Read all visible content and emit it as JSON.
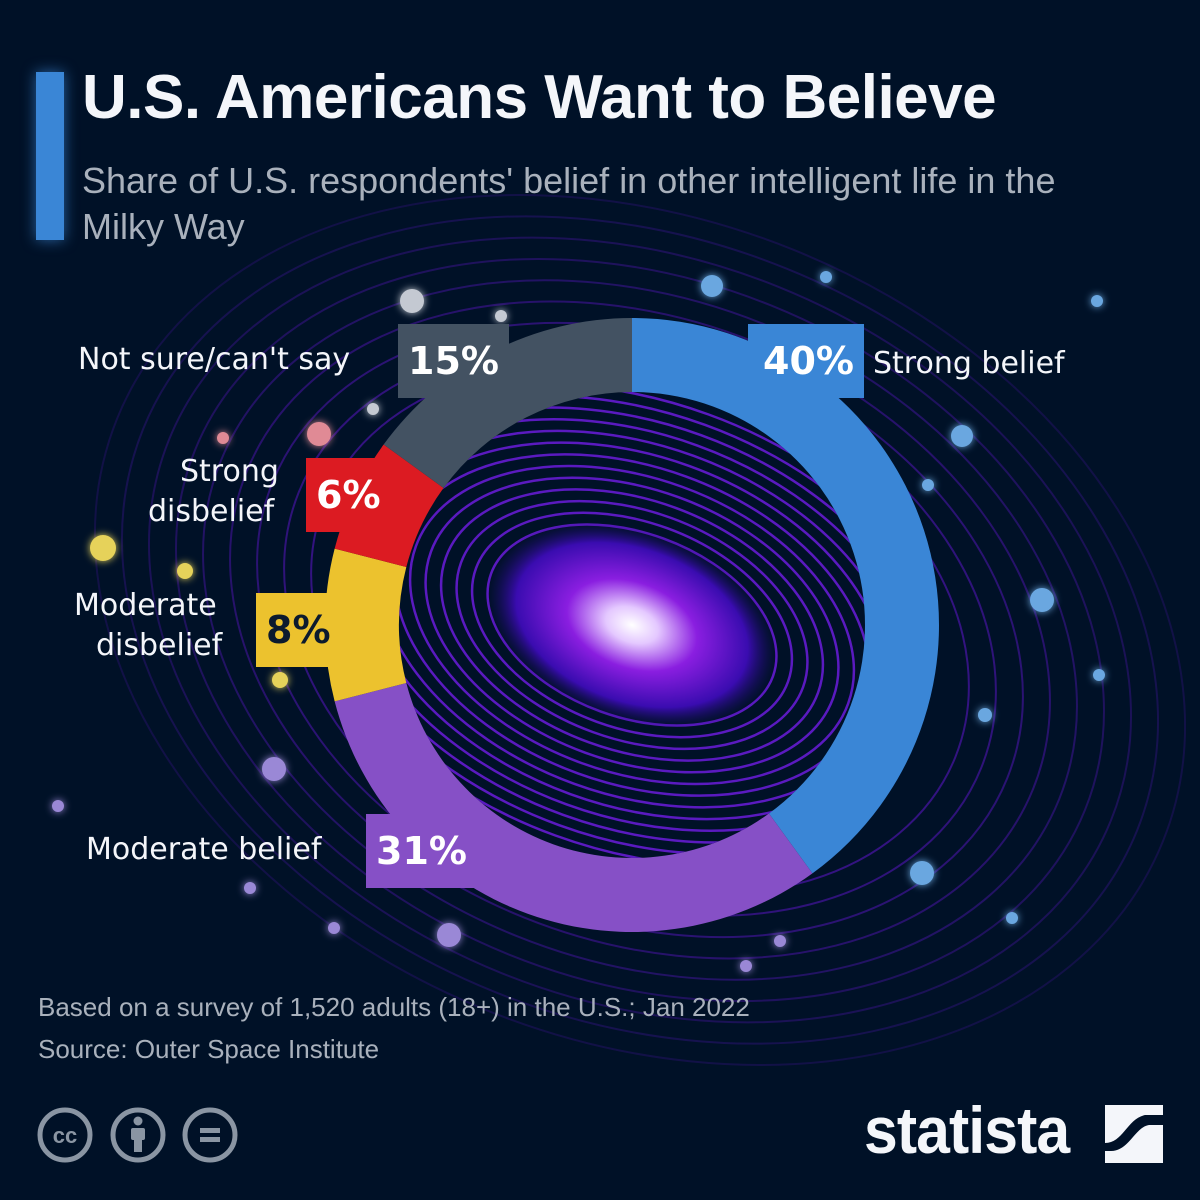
{
  "header": {
    "title": "U.S. Americans Want to Believe",
    "subtitle": "Share of U.S. respondents' belief in other intelligent life in the Milky Way"
  },
  "colors": {
    "background": "#001127",
    "accent": "#3a86d6",
    "strong_belief": "#3a86d6",
    "moderate_belief": "#8650c6",
    "moderate_disbelief": "#ecc22e",
    "strong_disbelief": "#dc1b22",
    "not_sure": "#435262"
  },
  "chart_data": {
    "type": "pie",
    "variant": "donut",
    "title": "U.S. Americans Want to Believe",
    "subtitle": "Share of U.S. respondents' belief in other intelligent life in the Milky Way",
    "direction": "clockwise-from-top",
    "unit": "%",
    "slices": [
      {
        "key": "strong_belief",
        "label": "Strong belief",
        "value": 40,
        "display": "40%",
        "color": "#3a86d6",
        "text_color": "#ffffff"
      },
      {
        "key": "moderate_belief",
        "label": "Moderate belief",
        "value": 31,
        "display": "31%",
        "color": "#8650c6",
        "text_color": "#ffffff"
      },
      {
        "key": "moderate_disbelief",
        "label": "Moderate disbelief",
        "value": 8,
        "display": "8%",
        "color": "#ecc22e",
        "text_color": "#0c1a2e"
      },
      {
        "key": "strong_disbelief",
        "label": "Strong disbelief",
        "value": 6,
        "display": "6%",
        "color": "#dc1b22",
        "text_color": "#ffffff"
      },
      {
        "key": "not_sure",
        "label": "Not sure/can't say",
        "value": 15,
        "display": "15%",
        "color": "#435262",
        "text_color": "#ffffff"
      }
    ]
  },
  "labels": {
    "strong_belief": "Strong belief",
    "moderate_belief": "Moderate belief",
    "moderate_disbelief_line1": "Moderate",
    "moderate_disbelief_line2": "disbelief",
    "strong_disbelief_line1": "Strong",
    "strong_disbelief_line2": "disbelief",
    "not_sure": "Not sure/can't say"
  },
  "footer": {
    "note": "Based on a survey of 1,520 adults (18+) in the U.S.; Jan 2022",
    "source": "Source: Outer Space Institute",
    "license_icons": [
      "creative-commons-icon",
      "attribution-icon",
      "no-derivatives-icon"
    ],
    "brand": "statista"
  }
}
